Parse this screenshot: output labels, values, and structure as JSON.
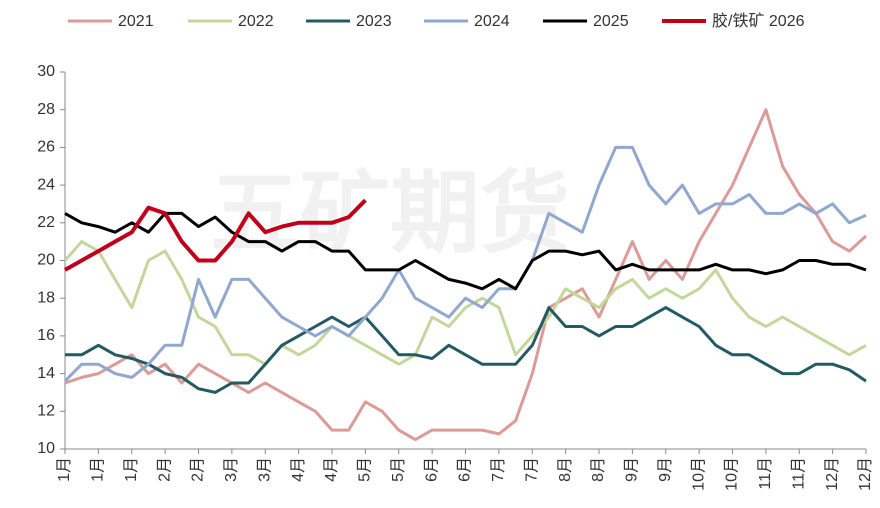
{
  "chart_data": {
    "type": "line",
    "watermark": "五矿期货",
    "categories": [
      "1月",
      null,
      "1月",
      null,
      "1月",
      null,
      "2月",
      null,
      "2月",
      null,
      "3月",
      null,
      "3月",
      null,
      "4月",
      null,
      "4月",
      null,
      "5月",
      null,
      "5月",
      null,
      "6月",
      null,
      "6月",
      null,
      "7月",
      null,
      "7月",
      null,
      "8月",
      null,
      "8月",
      null,
      "9月",
      null,
      "9月",
      null,
      "10月",
      null,
      "10月",
      null,
      "11月",
      null,
      "11月",
      null,
      "12月",
      null,
      "12月"
    ],
    "ylim": [
      10,
      30
    ],
    "yticks": [
      10,
      12,
      14,
      16,
      18,
      20,
      22,
      24,
      26,
      28,
      30
    ],
    "series": [
      {
        "name": "2021",
        "color": "#dc9a98",
        "values": [
          13.5,
          13.8,
          14,
          14.5,
          15,
          14,
          14.5,
          13.5,
          14.5,
          14,
          13.5,
          13,
          13.5,
          13,
          12.5,
          12,
          11,
          11,
          12.5,
          12,
          11,
          10.5,
          11,
          11,
          11,
          11,
          10.8,
          11.5,
          14,
          17.5,
          18,
          18.5,
          17,
          19,
          21,
          19,
          20,
          19,
          21,
          22.5,
          24,
          26,
          28,
          25,
          23.5,
          22.5,
          21,
          20.5,
          21.3
        ]
      },
      {
        "name": "2022",
        "color": "#c4d79b",
        "values": [
          20,
          21,
          20.5,
          19,
          17.5,
          20,
          20.5,
          19,
          17,
          16.5,
          15,
          15,
          14.5,
          15.5,
          15,
          15.5,
          16.5,
          16,
          15.5,
          15,
          14.5,
          15,
          17,
          16.5,
          17.5,
          18,
          17.5,
          15,
          16,
          17,
          18.5,
          18,
          17.5,
          18.5,
          19,
          18,
          18.5,
          18,
          18.5,
          19.5,
          18,
          17,
          16.5,
          17,
          16.5,
          16,
          15.5,
          15,
          15.5
        ]
      },
      {
        "name": "2023",
        "color": "#245a62",
        "values": [
          15,
          15,
          15.5,
          15,
          14.8,
          14.5,
          14,
          13.8,
          13.2,
          13,
          13.5,
          13.5,
          14.5,
          15.5,
          16,
          16.5,
          17,
          16.5,
          17,
          16,
          15,
          15,
          14.8,
          15.5,
          15,
          14.5,
          14.5,
          14.5,
          15.5,
          17.5,
          16.5,
          16.5,
          16,
          16.5,
          16.5,
          17,
          17.5,
          17,
          16.5,
          15.5,
          15,
          15,
          14.5,
          14,
          14,
          14.5,
          14.5,
          14.2,
          13.6
        ]
      },
      {
        "name": "2024",
        "color": "#92a7cf",
        "values": [
          13.6,
          14.5,
          14.5,
          14,
          13.8,
          14.5,
          15.5,
          15.5,
          19,
          17,
          19,
          19,
          18,
          17,
          16.5,
          16,
          16.5,
          16,
          17,
          18,
          19.5,
          18,
          17.5,
          17,
          18,
          17.5,
          18.5,
          18.5,
          20,
          22.5,
          22,
          21.5,
          24,
          26,
          26,
          24,
          23,
          24,
          22.5,
          23,
          23,
          23.5,
          22.5,
          22.5,
          23,
          22.5,
          23,
          22,
          22.4
        ]
      },
      {
        "name": "2025",
        "color": "#000000",
        "values": [
          22.5,
          22,
          21.8,
          21.5,
          22,
          21.5,
          22.5,
          22.5,
          21.8,
          22.3,
          21.5,
          21,
          21,
          20.5,
          21,
          21,
          20.5,
          20.5,
          19.5,
          19.5,
          19.5,
          20,
          19.5,
          19,
          18.8,
          18.5,
          19,
          18.5,
          20,
          20.5,
          20.5,
          20.3,
          20.5,
          19.5,
          19.8,
          19.5,
          19.5,
          19.5,
          19.5,
          19.8,
          19.5,
          19.5,
          19.3,
          19.5,
          20,
          20,
          19.8,
          19.8,
          19.5
        ]
      },
      {
        "name": "胶/铁矿 2026",
        "color": "#c0001a",
        "values": [
          19.5,
          20,
          20.5,
          21,
          21.5,
          22.8,
          22.5,
          21,
          20,
          20,
          21,
          22.5,
          21.5,
          21.8,
          22,
          22,
          22,
          22.3,
          23.2,
          null,
          null,
          null,
          null,
          null,
          null,
          null,
          null,
          null,
          null,
          null,
          null,
          null,
          null,
          null,
          null,
          null,
          null,
          null,
          null,
          null,
          null,
          null,
          null,
          null,
          null,
          null,
          null,
          null,
          null
        ]
      }
    ]
  }
}
